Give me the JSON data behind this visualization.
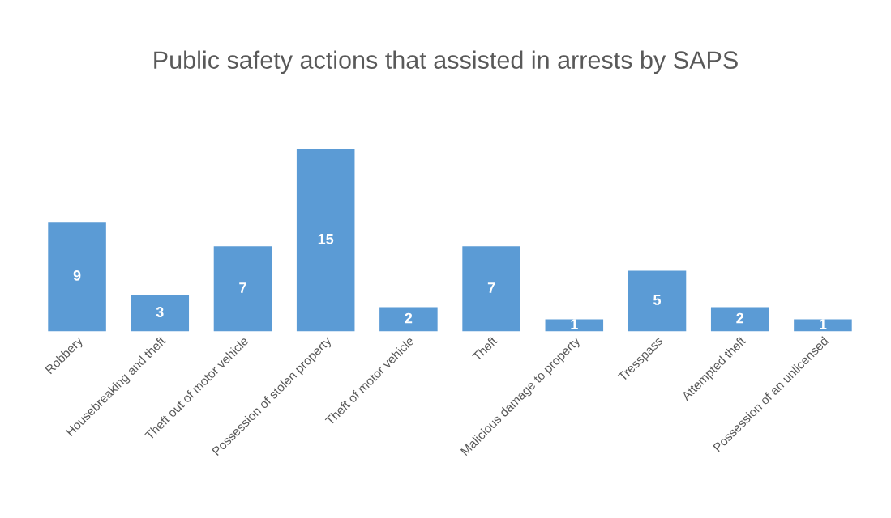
{
  "chart_data": {
    "type": "bar",
    "title": "Public safety actions that assisted in arrests by SAPS",
    "categories": [
      "Robbery",
      "Housebreaking and theft",
      "Theft out of motor vehicle",
      "Possession of stolen property",
      "Theft of motor vehicle",
      "Theft",
      "Malicious damage to property",
      "Tresspass",
      "Attempted theft",
      "Possession of an unlicensed"
    ],
    "values": [
      9,
      3,
      7,
      15,
      2,
      7,
      1,
      5,
      2,
      1
    ],
    "color": "#5b9bd5",
    "data_labels": true,
    "grid": false,
    "legend": false
  }
}
